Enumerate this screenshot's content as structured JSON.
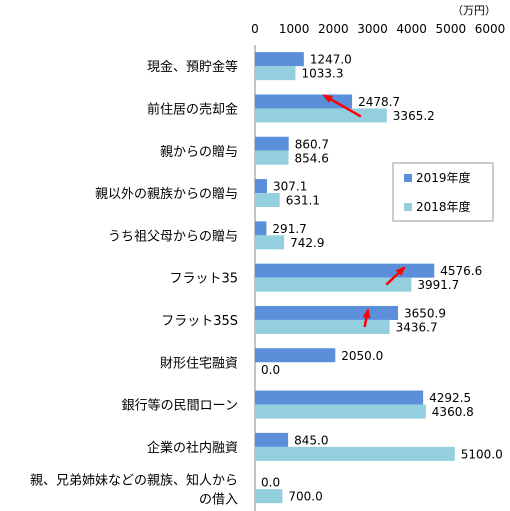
{
  "chart_data": {
    "type": "bar",
    "orientation": "horizontal",
    "unit": "（万円）",
    "xlim": [
      0,
      6000
    ],
    "ticks": [
      "0",
      "1000",
      "2000",
      "3000",
      "4000",
      "5000",
      "6000"
    ],
    "tick_values": [
      0,
      1000,
      2000,
      3000,
      4000,
      5000,
      6000
    ],
    "grid": false,
    "legend_position": "right",
    "categories": [
      [
        "現金、預貯金等"
      ],
      [
        "前住居の売却金"
      ],
      [
        "親からの贈与"
      ],
      [
        "親以外の親族からの贈与"
      ],
      [
        "うち祖父母からの贈与"
      ],
      [
        "フラット35"
      ],
      [
        "フラット35S"
      ],
      [
        "財形住宅融資"
      ],
      [
        "銀行等の民間ローン"
      ],
      [
        "企業の社内融資"
      ],
      [
        "親、兄弟姉妹などの親族、知人から",
        "の借入"
      ]
    ],
    "series": [
      {
        "name": "2019年度",
        "color": "#5b8fd9",
        "values": [
          1247.0,
          2478.7,
          860.7,
          307.1,
          291.7,
          4576.6,
          3650.9,
          2050.0,
          4292.5,
          845.0,
          0.0
        ],
        "labels": [
          "1247.0",
          "2478.7",
          "860.7",
          "307.1",
          "291.7",
          "4576.6",
          "3650.9",
          "2050.0",
          "4292.5",
          "845.0",
          "0.0"
        ]
      },
      {
        "name": "2018年度",
        "color": "#93cfde",
        "values": [
          1033.3,
          3365.2,
          854.6,
          631.1,
          742.9,
          3991.7,
          3436.7,
          0.0,
          4360.8,
          5100.0,
          700.0
        ],
        "labels": [
          "1033.3",
          "3365.2",
          "854.6",
          "631.1",
          "742.9",
          "3991.7",
          "3436.7",
          "0.0",
          "4360.8",
          "5100.0",
          "700.0"
        ]
      }
    ],
    "annotations": [
      {
        "type": "arrow",
        "color": "#ff0000",
        "category_index": 1,
        "direction": "decrease"
      },
      {
        "type": "arrow",
        "color": "#ff0000",
        "category_index": 5,
        "direction": "increase"
      },
      {
        "type": "arrow",
        "color": "#ff0000",
        "category_index": 6,
        "direction": "increase"
      }
    ]
  }
}
